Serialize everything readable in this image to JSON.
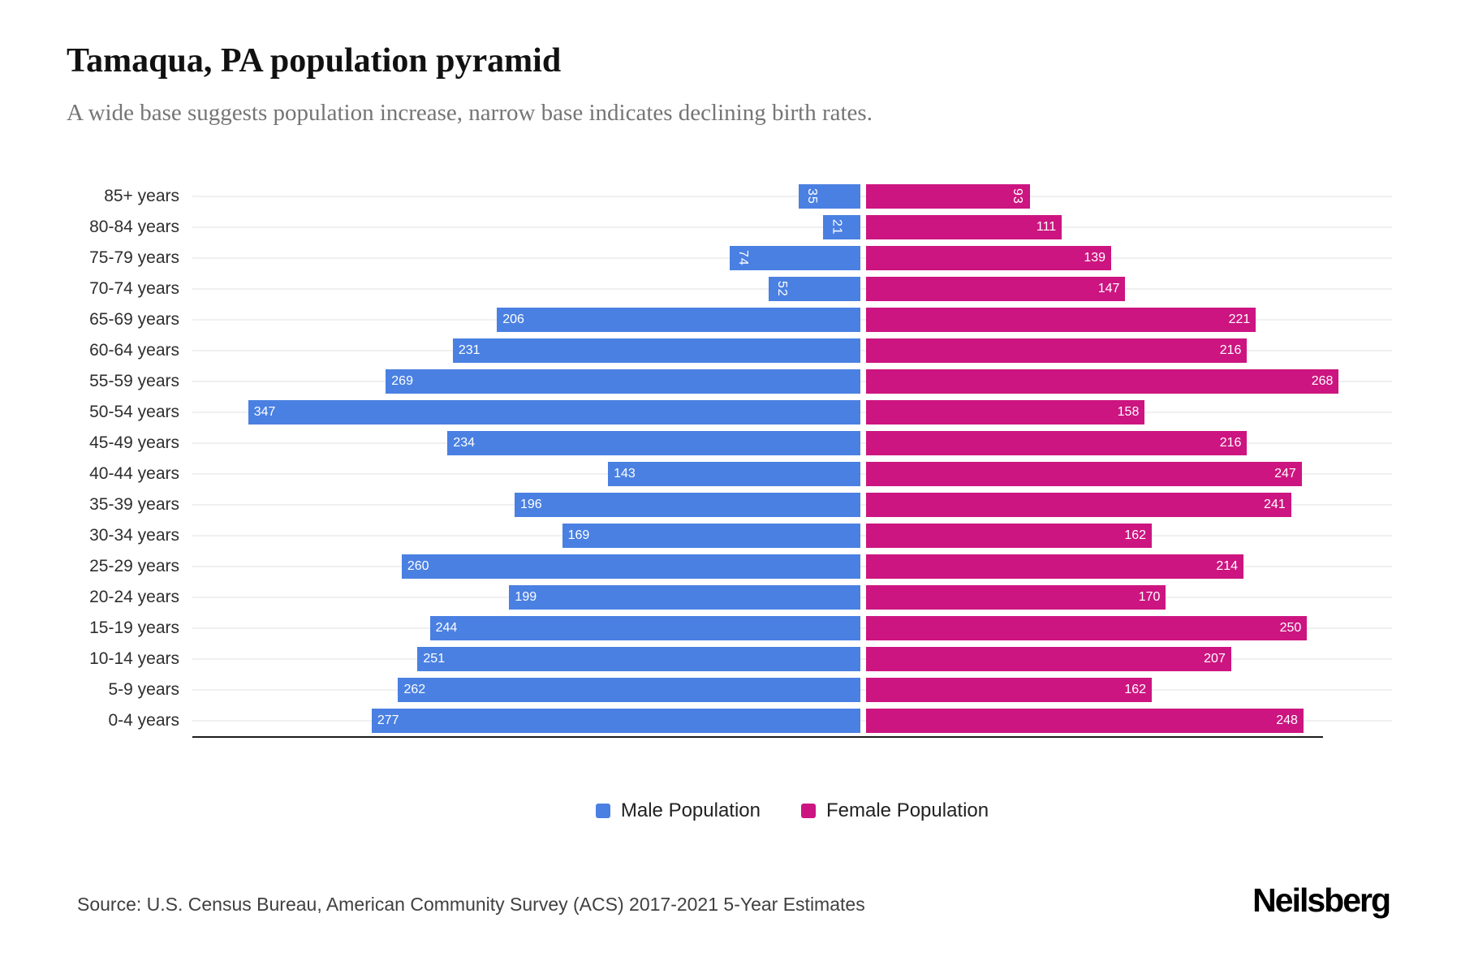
{
  "header": {
    "title": "Tamaqua, PA population pyramid",
    "subtitle": "A wide base suggests population increase, narrow base indicates declining birth rates."
  },
  "chart_data": {
    "type": "bar",
    "variant": "population-pyramid",
    "orientation": "horizontal",
    "categories": [
      "85+ years",
      "80-84 years",
      "75-79 years",
      "70-74 years",
      "65-69 years",
      "60-64 years",
      "55-59 years",
      "50-54 years",
      "45-49 years",
      "40-44 years",
      "35-39 years",
      "30-34 years",
      "25-29 years",
      "20-24 years",
      "15-19 years",
      "10-14 years",
      "5-9 years",
      "0-4 years"
    ],
    "series": [
      {
        "name": "Male Population",
        "color": "#4a80e2",
        "side": "left",
        "values": [
          35,
          21,
          74,
          52,
          206,
          231,
          269,
          347,
          234,
          143,
          196,
          169,
          260,
          199,
          244,
          251,
          262,
          277
        ]
      },
      {
        "name": "Female Population",
        "color": "#cc1580",
        "side": "right",
        "values": [
          93,
          111,
          139,
          147,
          221,
          216,
          268,
          158,
          216,
          247,
          241,
          162,
          214,
          170,
          250,
          207,
          162,
          248
        ]
      }
    ],
    "xmax_male": 380,
    "xmax_female": 300,
    "rotate_value_labels_below": 100,
    "grid": true,
    "legend_position": "bottom",
    "value_labels": "inside-outer-end",
    "colors": {
      "grid": "#f0f0f0",
      "axis": "#1c1c1c",
      "value_text": "#ffffff"
    }
  },
  "legend": {
    "male_label": "Male Population",
    "female_label": "Female Population"
  },
  "footer": {
    "source": "Source: U.S. Census Bureau, American Community Survey (ACS) 2017-2021 5-Year Estimates",
    "brand": "Neilsberg"
  }
}
